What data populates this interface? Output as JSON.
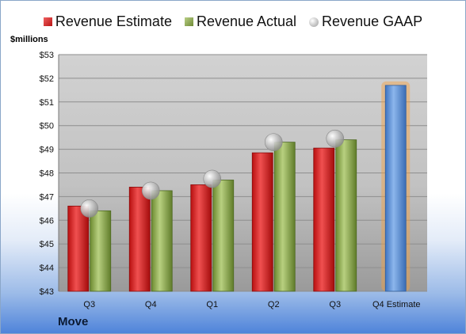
{
  "company": "Move",
  "legend": {
    "estimate": "Revenue Estimate",
    "actual": "Revenue Actual",
    "gaap": "Revenue GAAP"
  },
  "colors": {
    "estimate": "#d42020",
    "actual": "#8aa64a",
    "gaap": "#b8b8b8",
    "projection": "#5b8fd0",
    "projection_glow": "#f5a040"
  },
  "chart_data": {
    "type": "bar",
    "y_unit_label": "$millions",
    "categories": [
      "Q3",
      "Q4",
      "Q1",
      "Q2",
      "Q3",
      "Q4 Estimate"
    ],
    "ylim": [
      43,
      53
    ],
    "yticks": [
      "$43",
      "$44",
      "$45",
      "$46",
      "$47",
      "$48",
      "$49",
      "$50",
      "$51",
      "$52",
      "$53"
    ],
    "grid": true,
    "legend_position": "top",
    "series": [
      {
        "name": "Revenue Estimate",
        "kind": "bar",
        "values": [
          46.6,
          47.4,
          47.5,
          48.85,
          49.05,
          null
        ]
      },
      {
        "name": "Revenue Actual",
        "kind": "bar",
        "values": [
          46.4,
          47.25,
          47.7,
          49.3,
          49.4,
          null
        ]
      },
      {
        "name": "Revenue GAAP",
        "kind": "marker",
        "values": [
          46.5,
          47.25,
          47.75,
          49.3,
          49.45,
          null
        ]
      },
      {
        "name": "Q4 Estimate",
        "kind": "bar",
        "values": [
          null,
          null,
          null,
          null,
          null,
          51.7
        ]
      }
    ]
  }
}
